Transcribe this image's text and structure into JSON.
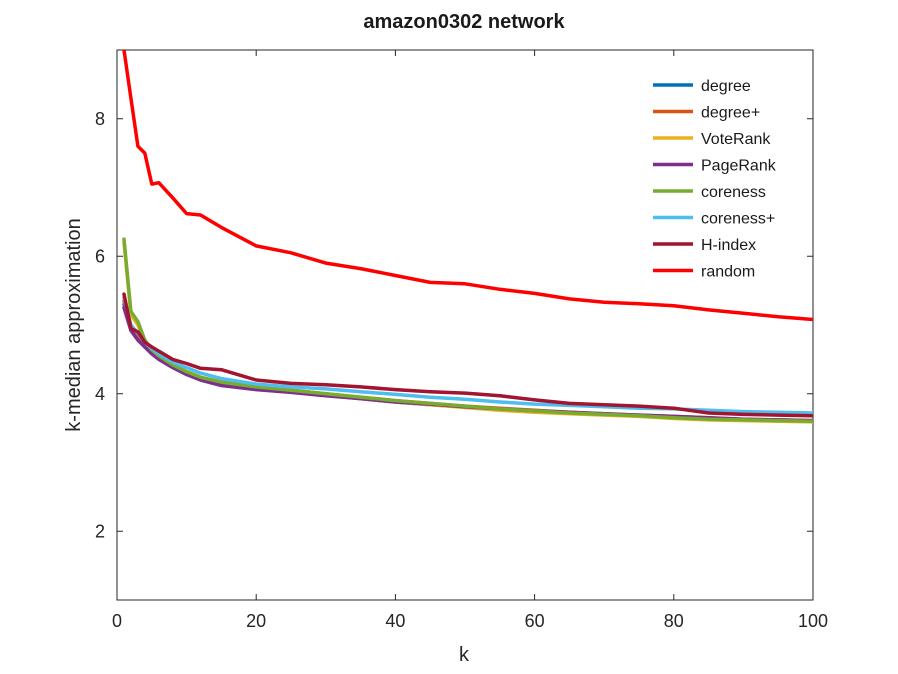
{
  "chart_data": {
    "type": "line",
    "title": "amazon0302 network",
    "xlabel": "k",
    "ylabel": "k-median approximation",
    "xlim": [
      0,
      100
    ],
    "ylim": [
      1,
      9
    ],
    "xticks": [
      0,
      20,
      40,
      60,
      80,
      100
    ],
    "yticks": [
      2,
      4,
      6,
      8
    ],
    "grid": false,
    "legend_position": "top-right",
    "x": [
      1,
      2,
      3,
      4,
      5,
      6,
      8,
      10,
      12,
      15,
      20,
      25,
      30,
      35,
      40,
      45,
      50,
      55,
      60,
      65,
      70,
      75,
      80,
      85,
      90,
      95,
      100
    ],
    "series": [
      {
        "name": "degree",
        "color": "#0072BD",
        "values": [
          5.3,
          4.95,
          4.8,
          4.7,
          4.6,
          4.52,
          4.4,
          4.3,
          4.22,
          4.15,
          4.08,
          4.03,
          3.98,
          3.93,
          3.88,
          3.84,
          3.81,
          3.77,
          3.74,
          3.72,
          3.7,
          3.68,
          3.66,
          3.64,
          3.62,
          3.61,
          3.6
        ]
      },
      {
        "name": "degree+",
        "color": "#D95319",
        "values": [
          5.35,
          5.0,
          4.85,
          4.72,
          4.62,
          4.54,
          4.42,
          4.32,
          4.24,
          4.17,
          4.1,
          4.05,
          4.0,
          3.95,
          3.9,
          3.86,
          3.82,
          3.79,
          3.76,
          3.73,
          3.71,
          3.69,
          3.67,
          3.65,
          3.63,
          3.62,
          3.61
        ]
      },
      {
        "name": "VoteRank",
        "color": "#EDB120",
        "values": [
          6.2,
          5.15,
          5.0,
          4.75,
          4.62,
          4.52,
          4.4,
          4.3,
          4.22,
          4.15,
          4.08,
          4.03,
          3.98,
          3.93,
          3.88,
          3.84,
          3.8,
          3.76,
          3.73,
          3.71,
          3.69,
          3.67,
          3.64,
          3.62,
          3.61,
          3.6,
          3.59
        ]
      },
      {
        "name": "PageRank",
        "color": "#7E2F8E",
        "values": [
          5.25,
          4.92,
          4.78,
          4.68,
          4.58,
          4.5,
          4.38,
          4.28,
          4.2,
          4.12,
          4.06,
          4.02,
          3.97,
          3.93,
          3.88,
          3.85,
          3.81,
          3.78,
          3.75,
          3.73,
          3.71,
          3.69,
          3.67,
          3.65,
          3.63,
          3.62,
          3.61
        ]
      },
      {
        "name": "coreness",
        "color": "#77AC30",
        "values": [
          6.25,
          5.2,
          5.05,
          4.78,
          4.64,
          4.55,
          4.42,
          4.32,
          4.24,
          4.17,
          4.1,
          4.05,
          4.0,
          3.95,
          3.9,
          3.86,
          3.82,
          3.78,
          3.75,
          3.72,
          3.7,
          3.68,
          3.65,
          3.63,
          3.62,
          3.61,
          3.6
        ]
      },
      {
        "name": "coreness+",
        "color": "#4DBEEE",
        "values": [
          5.4,
          5.0,
          4.88,
          4.75,
          4.66,
          4.58,
          4.46,
          4.38,
          4.3,
          4.22,
          4.14,
          4.1,
          4.07,
          4.03,
          3.99,
          3.95,
          3.92,
          3.88,
          3.85,
          3.83,
          3.81,
          3.79,
          3.78,
          3.76,
          3.74,
          3.73,
          3.72
        ]
      },
      {
        "name": "H-index",
        "color": "#A2142F",
        "values": [
          5.45,
          4.95,
          4.9,
          4.75,
          4.68,
          4.62,
          4.5,
          4.44,
          4.37,
          4.35,
          4.2,
          4.15,
          4.13,
          4.1,
          4.06,
          4.03,
          4.01,
          3.97,
          3.91,
          3.86,
          3.84,
          3.82,
          3.79,
          3.72,
          3.7,
          3.69,
          3.68
        ]
      },
      {
        "name": "random",
        "color": "#FF0000",
        "values": [
          9.0,
          8.3,
          7.6,
          7.5,
          7.05,
          7.07,
          6.85,
          6.62,
          6.6,
          6.42,
          6.15,
          6.05,
          5.9,
          5.82,
          5.72,
          5.62,
          5.6,
          5.52,
          5.46,
          5.38,
          5.33,
          5.31,
          5.28,
          5.22,
          5.17,
          5.12,
          5.08
        ]
      }
    ]
  }
}
